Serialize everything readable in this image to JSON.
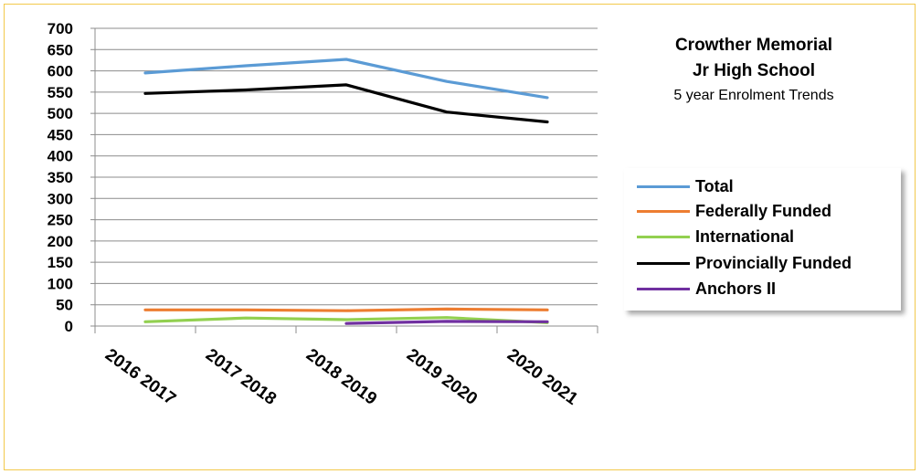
{
  "chart_data": {
    "type": "line",
    "title_lines": [
      "Crowther Memorial",
      "Jr High School"
    ],
    "subtitle": "5 year Enrolment Trends",
    "categories": [
      "2016 2017",
      "2017 2018",
      "2018 2019",
      "2019 2020",
      "2020 2021"
    ],
    "ylim": [
      0,
      700
    ],
    "yticks": [
      "0",
      "50",
      "100",
      "150",
      "200",
      "250",
      "300",
      "350",
      "400",
      "450",
      "500",
      "550",
      "600",
      "650",
      "700"
    ],
    "grid": true,
    "legend_position": "right",
    "series": [
      {
        "name": "Total",
        "color": "#5b9bd5",
        "values": [
          595,
          612,
          627,
          575,
          537
        ]
      },
      {
        "name": "Federally Funded",
        "color": "#ed7d31",
        "values": [
          38,
          38,
          36,
          40,
          38
        ]
      },
      {
        "name": "International",
        "color": "#92d050",
        "values": [
          10,
          19,
          15,
          20,
          8
        ]
      },
      {
        "name": "Provincially Funded",
        "color": "#000000",
        "values": [
          547,
          555,
          567,
          503,
          480
        ]
      },
      {
        "name": "Anchors II",
        "color": "#7030a0",
        "values": [
          null,
          null,
          6,
          11,
          10
        ]
      }
    ]
  }
}
